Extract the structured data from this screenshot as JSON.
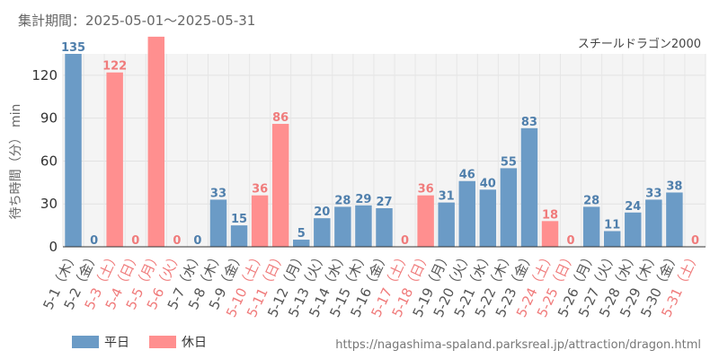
{
  "period_label": "集計期間：2025-05-01～2025-05-31",
  "subtitle": "スチールドラゴン2000",
  "source_url": "https://nagashima-spaland.parksreal.jp/attraction/dragon.html",
  "colors": {
    "weekday": "#6b9bc6",
    "holiday": "#ff8f8f",
    "weekday_label": "#4f7fac",
    "holiday_label": "#f07b7b",
    "weekday_tick": "#555555",
    "holiday_tick": "#f07b7b"
  },
  "chart_data": {
    "type": "bar",
    "ylabel": "待ち時間（分） min",
    "ylim": [
      0,
      135
    ],
    "yticks": [
      0,
      30,
      60,
      90,
      120
    ],
    "grid": true,
    "legend_position": "bottom-left",
    "legend": [
      {
        "key": "weekday",
        "label": "平日"
      },
      {
        "key": "holiday",
        "label": "休日"
      }
    ],
    "categories": [
      "5-1（木）",
      "5-2（金）",
      "5-3（土）",
      "5-4（日）",
      "5-5（月）",
      "5-6（火）",
      "5-7（水）",
      "5-8（木）",
      "5-9（金）",
      "5-10（土）",
      "5-11（日）",
      "5-12（月）",
      "5-13（火）",
      "5-14（水）",
      "5-15（木）",
      "5-16（金）",
      "5-17（土）",
      "5-18（日）",
      "5-19（月）",
      "5-20（火）",
      "5-21（水）",
      "5-22（木）",
      "5-23（金）",
      "5-24（土）",
      "5-25（日）",
      "5-26（月）",
      "5-27（火）",
      "5-28（水）",
      "5-29（木）",
      "5-30（金）",
      "5-31（土）"
    ],
    "values": [
      135,
      0,
      122,
      0,
      147,
      0,
      0,
      33,
      15,
      36,
      86,
      5,
      20,
      28,
      29,
      27,
      0,
      36,
      31,
      46,
      40,
      55,
      83,
      18,
      0,
      28,
      11,
      24,
      33,
      38,
      0
    ],
    "day_type": [
      "weekday",
      "weekday",
      "holiday",
      "holiday",
      "holiday",
      "holiday",
      "weekday",
      "weekday",
      "weekday",
      "holiday",
      "holiday",
      "weekday",
      "weekday",
      "weekday",
      "weekday",
      "weekday",
      "holiday",
      "holiday",
      "weekday",
      "weekday",
      "weekday",
      "weekday",
      "weekday",
      "holiday",
      "holiday",
      "weekday",
      "weekday",
      "weekday",
      "weekday",
      "weekday",
      "holiday"
    ],
    "data_labels": [
      "135",
      "0",
      "122",
      "0",
      "",
      "0",
      "0",
      "33",
      "15",
      "36",
      "86",
      "5",
      "20",
      "28",
      "29",
      "27",
      "0",
      "36",
      "31",
      "46",
      "40",
      "55",
      "83",
      "18",
      "0",
      "28",
      "11",
      "24",
      "33",
      "38",
      "0"
    ]
  }
}
